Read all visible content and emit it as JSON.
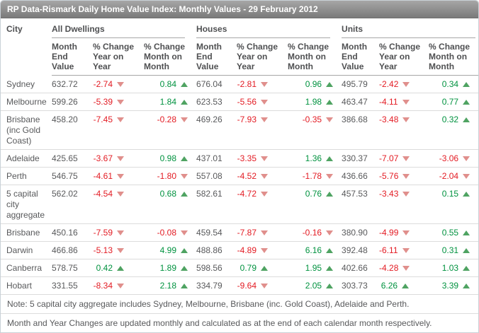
{
  "title": "RP Data-Rismark Daily Home Value Index: Monthly Values - 29 February 2012",
  "table": {
    "city_header": "City",
    "groups": [
      {
        "label": "All Dwellings"
      },
      {
        "label": "Houses"
      },
      {
        "label": "Units"
      }
    ],
    "sub_headers": [
      "Month End Value",
      "% Change Year on Year",
      "% Change Month on Month"
    ],
    "rows": [
      {
        "city": "Sydney",
        "cells": [
          {
            "v": "632.72"
          },
          {
            "v": "-2.74",
            "dir": "down"
          },
          {
            "v": "0.84",
            "dir": "up"
          },
          {
            "v": "676.04"
          },
          {
            "v": "-2.81",
            "dir": "down"
          },
          {
            "v": "0.96",
            "dir": "up"
          },
          {
            "v": "495.79"
          },
          {
            "v": "-2.42",
            "dir": "down"
          },
          {
            "v": "0.34",
            "dir": "up"
          }
        ]
      },
      {
        "city": "Melbourne",
        "cells": [
          {
            "v": "599.26"
          },
          {
            "v": "-5.39",
            "dir": "down"
          },
          {
            "v": "1.84",
            "dir": "up"
          },
          {
            "v": "623.53"
          },
          {
            "v": "-5.56",
            "dir": "down"
          },
          {
            "v": "1.98",
            "dir": "up"
          },
          {
            "v": "463.47"
          },
          {
            "v": "-4.11",
            "dir": "down"
          },
          {
            "v": "0.77",
            "dir": "up"
          }
        ]
      },
      {
        "city": "Brisbane (inc Gold Coast)",
        "cells": [
          {
            "v": "458.20"
          },
          {
            "v": "-7.45",
            "dir": "down"
          },
          {
            "v": "-0.28",
            "dir": "down"
          },
          {
            "v": "469.26"
          },
          {
            "v": "-7.93",
            "dir": "down"
          },
          {
            "v": "-0.35",
            "dir": "down"
          },
          {
            "v": "386.68"
          },
          {
            "v": "-3.48",
            "dir": "down"
          },
          {
            "v": "0.32",
            "dir": "up"
          }
        ]
      },
      {
        "city": "Adelaide",
        "cells": [
          {
            "v": "425.65"
          },
          {
            "v": "-3.67",
            "dir": "down"
          },
          {
            "v": "0.98",
            "dir": "up"
          },
          {
            "v": "437.01"
          },
          {
            "v": "-3.35",
            "dir": "down"
          },
          {
            "v": "1.36",
            "dir": "up"
          },
          {
            "v": "330.37"
          },
          {
            "v": "-7.07",
            "dir": "down"
          },
          {
            "v": "-3.06",
            "dir": "down"
          }
        ]
      },
      {
        "city": "Perth",
        "cells": [
          {
            "v": "546.75"
          },
          {
            "v": "-4.61",
            "dir": "down"
          },
          {
            "v": "-1.80",
            "dir": "down"
          },
          {
            "v": "557.08"
          },
          {
            "v": "-4.52",
            "dir": "down"
          },
          {
            "v": "-1.78",
            "dir": "down"
          },
          {
            "v": "436.66"
          },
          {
            "v": "-5.76",
            "dir": "down"
          },
          {
            "v": "-2.04",
            "dir": "down"
          }
        ]
      },
      {
        "city": "5 capital city aggregate",
        "cells": [
          {
            "v": "562.02"
          },
          {
            "v": "-4.54",
            "dir": "down"
          },
          {
            "v": "0.68",
            "dir": "up"
          },
          {
            "v": "582.61"
          },
          {
            "v": "-4.72",
            "dir": "down"
          },
          {
            "v": "0.76",
            "dir": "up"
          },
          {
            "v": "457.53"
          },
          {
            "v": "-3.43",
            "dir": "down"
          },
          {
            "v": "0.15",
            "dir": "up"
          }
        ]
      },
      {
        "city": "Brisbane",
        "cells": [
          {
            "v": "450.16"
          },
          {
            "v": "-7.59",
            "dir": "down"
          },
          {
            "v": "-0.08",
            "dir": "down"
          },
          {
            "v": "459.54"
          },
          {
            "v": "-7.87",
            "dir": "down"
          },
          {
            "v": "-0.16",
            "dir": "down"
          },
          {
            "v": "380.90"
          },
          {
            "v": "-4.99",
            "dir": "down"
          },
          {
            "v": "0.55",
            "dir": "up"
          }
        ]
      },
      {
        "city": "Darwin",
        "cells": [
          {
            "v": "466.86"
          },
          {
            "v": "-5.13",
            "dir": "down"
          },
          {
            "v": "4.99",
            "dir": "up"
          },
          {
            "v": "488.86"
          },
          {
            "v": "-4.89",
            "dir": "down"
          },
          {
            "v": "6.16",
            "dir": "up"
          },
          {
            "v": "392.48"
          },
          {
            "v": "-6.11",
            "dir": "down"
          },
          {
            "v": "0.31",
            "dir": "up"
          }
        ]
      },
      {
        "city": "Canberra",
        "cells": [
          {
            "v": "578.75"
          },
          {
            "v": "0.42",
            "dir": "up"
          },
          {
            "v": "1.89",
            "dir": "up"
          },
          {
            "v": "598.56"
          },
          {
            "v": "0.79",
            "dir": "up"
          },
          {
            "v": "1.95",
            "dir": "up"
          },
          {
            "v": "402.66"
          },
          {
            "v": "-4.28",
            "dir": "down"
          },
          {
            "v": "1.03",
            "dir": "up"
          }
        ]
      },
      {
        "city": "Hobart",
        "cells": [
          {
            "v": "331.55"
          },
          {
            "v": "-8.34",
            "dir": "down"
          },
          {
            "v": "2.18",
            "dir": "up"
          },
          {
            "v": "334.79"
          },
          {
            "v": "-9.64",
            "dir": "down"
          },
          {
            "v": "2.05",
            "dir": "up"
          },
          {
            "v": "303.73"
          },
          {
            "v": "6.26",
            "dir": "up"
          },
          {
            "v": "3.39",
            "dir": "up"
          }
        ]
      }
    ]
  },
  "notes": [
    "Note: 5 capital city aggregate includes Sydney, Melbourne, Brisbane (inc. Gold Coast), Adelaide and Perth.",
    "Month and Year Changes are updated monthly and calculated as at the end of each calendar month respectively."
  ],
  "colors": {
    "negative": "#e31b23",
    "positive": "#00923f",
    "down_arrow": "#e08f8c",
    "up_arrow": "#4fa362",
    "titlebar_gradient_top": "#a6a6a6",
    "titlebar_gradient_bottom": "#7a7a7a",
    "border": "#c9d1d7"
  }
}
